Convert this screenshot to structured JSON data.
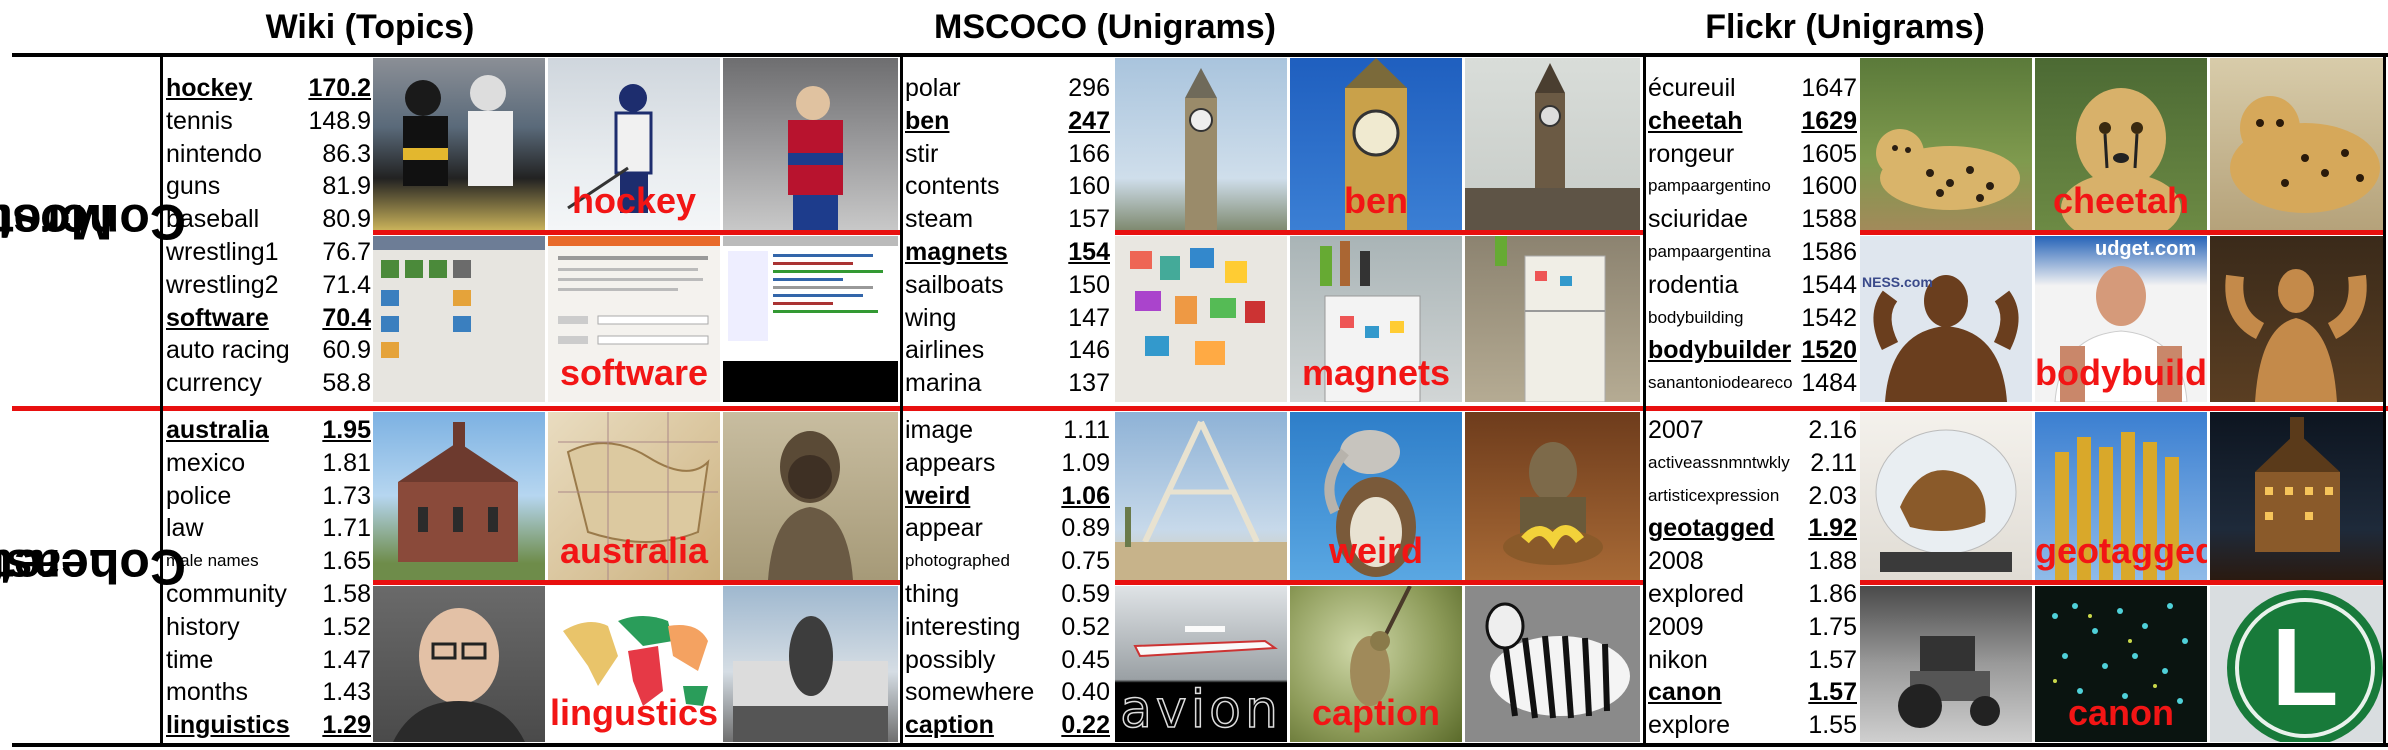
{
  "headers": {
    "wiki": "Wiki (Topics)",
    "mscoco": "MSCOCO (Unigrams)",
    "flickr": "Flickr (Unigrams)"
  },
  "row_labels": {
    "most": [
      "Most",
      "Concrete"
    ],
    "least": [
      "Least",
      "Concrete"
    ]
  },
  "colors": {
    "accent_red": "#e8100f",
    "label_red": "#f21515"
  },
  "wiki": {
    "most": [
      {
        "word": "hockey",
        "value": "170.2",
        "bold": true
      },
      {
        "word": "tennis",
        "value": "148.9"
      },
      {
        "word": "nintendo",
        "value": "86.3"
      },
      {
        "word": "guns",
        "value": "81.9"
      },
      {
        "word": "baseball",
        "value": "80.9"
      },
      {
        "word": "wrestling1",
        "value": "76.7"
      },
      {
        "word": "wrestling2",
        "value": "71.4"
      },
      {
        "word": "software",
        "value": "70.4",
        "bold": true
      },
      {
        "word": "auto racing",
        "value": "60.9"
      },
      {
        "word": "currency",
        "value": "58.8"
      }
    ],
    "least": [
      {
        "word": "australia",
        "value": "1.95",
        "bold": true
      },
      {
        "word": "mexico",
        "value": "1.81"
      },
      {
        "word": "police",
        "value": "1.73"
      },
      {
        "word": "law",
        "value": "1.71"
      },
      {
        "word": "male names",
        "value": "1.65",
        "small": true
      },
      {
        "word": "community",
        "value": "1.58"
      },
      {
        "word": "history",
        "value": "1.52"
      },
      {
        "word": "time",
        "value": "1.47"
      },
      {
        "word": "months",
        "value": "1.43"
      },
      {
        "word": "linguistics",
        "value": "1.29",
        "bold": true
      }
    ],
    "image_labels": [
      "hockey",
      "software",
      "australia",
      "lingustics"
    ]
  },
  "mscoco": {
    "most": [
      {
        "word": "polar",
        "value": "296"
      },
      {
        "word": "ben",
        "value": "247",
        "bold": true
      },
      {
        "word": "stir",
        "value": "166"
      },
      {
        "word": "contents",
        "value": "160"
      },
      {
        "word": "steam",
        "value": "157"
      },
      {
        "word": "magnets",
        "value": "154",
        "bold": true
      },
      {
        "word": "sailboats",
        "value": "150"
      },
      {
        "word": "wing",
        "value": "147"
      },
      {
        "word": "airlines",
        "value": "146"
      },
      {
        "word": "marina",
        "value": "137"
      }
    ],
    "least": [
      {
        "word": "image",
        "value": "1.11"
      },
      {
        "word": "appears",
        "value": "1.09"
      },
      {
        "word": "weird",
        "value": "1.06",
        "bold": true
      },
      {
        "word": "appear",
        "value": "0.89"
      },
      {
        "word": "photographed",
        "value": "0.75",
        "small": true
      },
      {
        "word": "thing",
        "value": "0.59"
      },
      {
        "word": "interesting",
        "value": "0.52"
      },
      {
        "word": "possibly",
        "value": "0.45"
      },
      {
        "word": "somewhere",
        "value": "0.40"
      },
      {
        "word": "caption",
        "value": "0.22",
        "bold": true
      }
    ],
    "image_labels": [
      "ben",
      "magnets",
      "weird",
      "caption"
    ],
    "avion_text": "avion"
  },
  "flickr": {
    "most": [
      {
        "word": "écureuil",
        "value": "1647"
      },
      {
        "word": "cheetah",
        "value": "1629",
        "bold": true
      },
      {
        "word": "rongeur",
        "value": "1605"
      },
      {
        "word": "pampaargentino",
        "value": "1600",
        "small": true
      },
      {
        "word": "sciuridae",
        "value": "1588"
      },
      {
        "word": "pampaargentina",
        "value": "1586",
        "small": true
      },
      {
        "word": "rodentia",
        "value": "1544"
      },
      {
        "word": "bodybuilding",
        "value": "1542",
        "small": true
      },
      {
        "word": "bodybuilder",
        "value": "1520",
        "bold": true
      },
      {
        "word": "sanantoniodeareco",
        "value": "1484",
        "small": true
      }
    ],
    "least": [
      {
        "word": "2007",
        "value": "2.16"
      },
      {
        "word": "activeassnmntwkly",
        "value": "2.11",
        "small": true
      },
      {
        "word": "artisticexpression",
        "value": "2.03",
        "small": true
      },
      {
        "word": "geotagged",
        "value": "1.92",
        "bold": true
      },
      {
        "word": "2008",
        "value": "1.88"
      },
      {
        "word": "explored",
        "value": "1.86"
      },
      {
        "word": "2009",
        "value": "1.75"
      },
      {
        "word": "nikon",
        "value": "1.57"
      },
      {
        "word": "canon",
        "value": "1.57",
        "bold": true
      },
      {
        "word": "explore",
        "value": "1.55"
      }
    ],
    "image_labels": [
      "cheetah",
      "bodybuilder",
      "geotagged",
      "canon"
    ],
    "sign_letter": "L",
    "sign_text": "udget.com",
    "sign_text2": "NESS.com"
  }
}
